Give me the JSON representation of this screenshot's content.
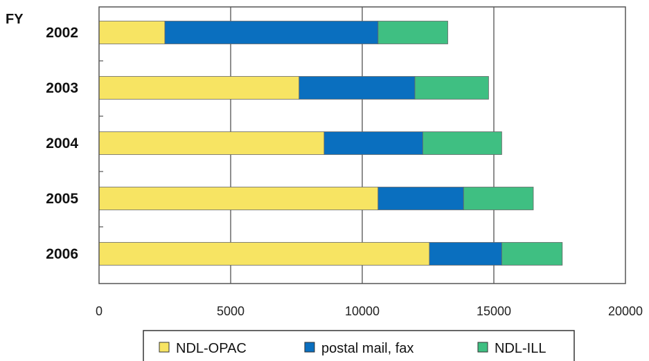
{
  "chart_data": {
    "type": "bar",
    "orientation": "horizontal",
    "stacked": true,
    "y_label": "FY",
    "categories": [
      "2002",
      "2003",
      "2004",
      "2005",
      "2006"
    ],
    "series": [
      {
        "name": "NDL-OPAC",
        "color": "#f7e463",
        "values": [
          2500,
          7600,
          8550,
          10600,
          12550
        ]
      },
      {
        "name": "postal mail, fax",
        "color": "#0a6fbf",
        "values": [
          8100,
          4400,
          3750,
          3250,
          2750
        ]
      },
      {
        "name": "NDL-ILL",
        "color": "#3fbf82",
        "values": [
          2650,
          2800,
          3000,
          2650,
          2300
        ]
      }
    ],
    "xlim": [
      0,
      20000
    ],
    "x_ticks": [
      "0",
      "5000",
      "10000",
      "15000",
      "20000"
    ],
    "grid": "vertical",
    "legend_position": "bottom"
  }
}
